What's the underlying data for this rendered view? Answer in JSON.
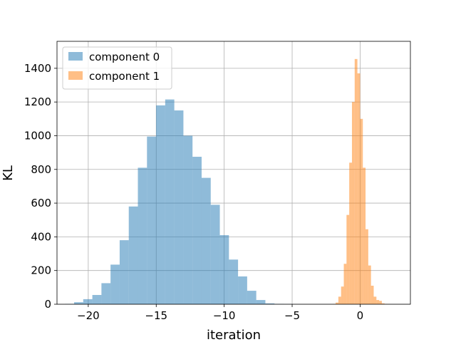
{
  "chart_data": {
    "type": "bar",
    "xlabel": "iteration",
    "ylabel": "KL",
    "xlim": [
      -22.3,
      3.7
    ],
    "ylim": [
      0,
      1560
    ],
    "grid": true,
    "legend_position": "top-left",
    "x_ticks": [
      -20,
      -15,
      -10,
      -5,
      0
    ],
    "x_tick_labels": [
      "−20",
      "−15",
      "−10",
      "−5",
      "0"
    ],
    "y_ticks": [
      0,
      200,
      400,
      600,
      800,
      1000,
      1200,
      1400
    ],
    "y_tick_labels": [
      "0",
      "200",
      "400",
      "600",
      "800",
      "1000",
      "1200",
      "1400"
    ],
    "series": [
      {
        "name": "component 0",
        "color": "#1f77b4",
        "alpha": 0.5,
        "bin_edges": [
          -21.71,
          -21.04,
          -20.37,
          -19.7,
          -19.03,
          -18.36,
          -17.69,
          -17.02,
          -16.35,
          -15.68,
          -15.01,
          -14.34,
          -13.67,
          -13.0,
          -12.33,
          -11.66,
          -10.99,
          -10.32,
          -9.65,
          -8.98,
          -8.31,
          -7.64,
          -6.97,
          -6.3,
          -5.63,
          -4.96
        ],
        "counts": [
          2,
          12,
          30,
          55,
          125,
          235,
          380,
          580,
          810,
          995,
          1180,
          1215,
          1150,
          1000,
          875,
          750,
          590,
          410,
          265,
          165,
          80,
          25,
          5,
          2,
          1
        ]
      },
      {
        "name": "component 1",
        "color": "#ff7f0e",
        "alpha": 0.5,
        "bin_edges": [
          -2.0,
          -1.8,
          -1.6,
          -1.4,
          -1.2,
          -1.0,
          -0.8,
          -0.6,
          -0.4,
          -0.2,
          0.0,
          0.2,
          0.4,
          0.6,
          0.8,
          1.0,
          1.2,
          1.4,
          1.6,
          1.8,
          2.0,
          2.2,
          2.4,
          2.6,
          2.8,
          3.0
        ],
        "counts": [
          2,
          10,
          45,
          105,
          240,
          530,
          840,
          1200,
          1455,
          1370,
          1100,
          810,
          445,
          230,
          110,
          45,
          25,
          20,
          5,
          2,
          1,
          0,
          0,
          0,
          0
        ]
      }
    ]
  }
}
